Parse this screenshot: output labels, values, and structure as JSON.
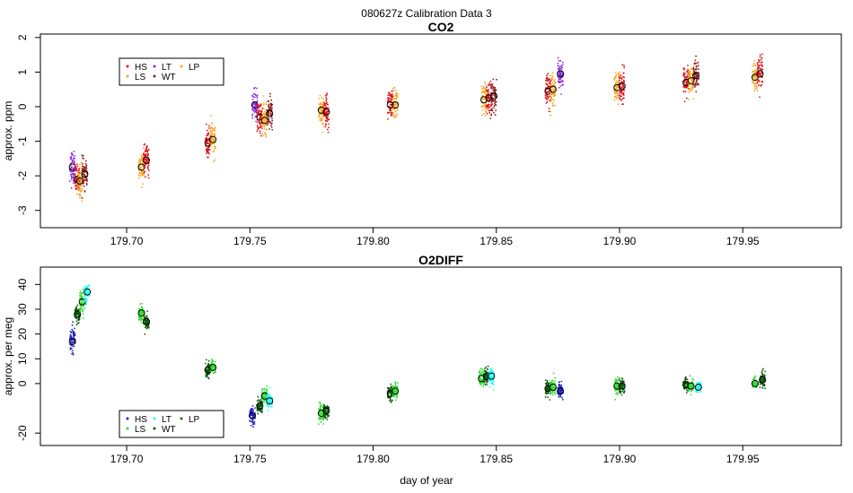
{
  "figure": {
    "title": "080627z   Calibration Data 3",
    "xlabel": "day of year"
  },
  "colors": {
    "HS": "#e0101a",
    "LS": "#f5a623",
    "LT": "#8a2be2",
    "WT": "#8b1a1a",
    "LP": "#f0b000"
  },
  "colors_o2": {
    "HS": "#2020c8",
    "LS": "#33dd33",
    "LT": "#22ffff",
    "WT": "#0a5a0a",
    "LP": "#1a6e1a"
  },
  "chart_data": [
    {
      "type": "scatter",
      "title": "CO2",
      "ylabel": "approx. ppm",
      "xlim": [
        179.665,
        179.99
      ],
      "ylim": [
        -3.5,
        2.1
      ],
      "xticks": [
        "179.70",
        "179.75",
        "179.80",
        "179.85",
        "179.90",
        "179.95"
      ],
      "xtick_values": [
        179.7,
        179.75,
        179.8,
        179.85,
        179.9,
        179.95
      ],
      "yticks": [
        "-3",
        "-2",
        "-1",
        "0",
        "1",
        "2"
      ],
      "ytick_values": [
        -3,
        -2,
        -1,
        0,
        1,
        2
      ],
      "legend": {
        "placement": "top-left",
        "entries": [
          {
            "label": "HS",
            "series": "HS"
          },
          {
            "label": "LS",
            "series": "LS"
          },
          {
            "label": "LT",
            "series": "LT"
          },
          {
            "label": "WT",
            "series": "WT"
          },
          {
            "label": "LP",
            "series": "LP"
          }
        ]
      },
      "clusters": [
        {
          "series": "LT",
          "x": 179.678,
          "mean": -1.75,
          "spread": 0.5
        },
        {
          "series": "HS",
          "x": 179.68,
          "mean": -2.1,
          "spread": 0.4
        },
        {
          "series": "LS",
          "x": 179.681,
          "mean": -2.15,
          "spread": 0.5
        },
        {
          "series": "WT",
          "x": 179.683,
          "mean": -1.95,
          "spread": 0.4
        },
        {
          "series": "LS",
          "x": 179.706,
          "mean": -1.75,
          "spread": 0.4
        },
        {
          "series": "HS",
          "x": 179.708,
          "mean": -1.55,
          "spread": 0.4
        },
        {
          "series": "HS",
          "x": 179.733,
          "mean": -1.05,
          "spread": 0.45
        },
        {
          "series": "LS",
          "x": 179.735,
          "mean": -0.95,
          "spread": 0.45
        },
        {
          "series": "LT",
          "x": 179.752,
          "mean": 0.05,
          "spread": 0.4
        },
        {
          "series": "HS",
          "x": 179.754,
          "mean": -0.3,
          "spread": 0.45
        },
        {
          "series": "LS",
          "x": 179.756,
          "mean": -0.4,
          "spread": 0.45
        },
        {
          "series": "WT",
          "x": 179.758,
          "mean": -0.2,
          "spread": 0.45
        },
        {
          "series": "LS",
          "x": 179.779,
          "mean": -0.1,
          "spread": 0.45
        },
        {
          "series": "HS",
          "x": 179.781,
          "mean": -0.15,
          "spread": 0.45
        },
        {
          "series": "HS",
          "x": 179.807,
          "mean": 0.05,
          "spread": 0.45
        },
        {
          "series": "LS",
          "x": 179.809,
          "mean": 0.05,
          "spread": 0.45
        },
        {
          "series": "LS",
          "x": 179.845,
          "mean": 0.2,
          "spread": 0.45
        },
        {
          "series": "HS",
          "x": 179.847,
          "mean": 0.25,
          "spread": 0.45
        },
        {
          "series": "WT",
          "x": 179.849,
          "mean": 0.3,
          "spread": 0.45
        },
        {
          "series": "HS",
          "x": 179.871,
          "mean": 0.45,
          "spread": 0.45
        },
        {
          "series": "LS",
          "x": 179.873,
          "mean": 0.5,
          "spread": 0.45
        },
        {
          "series": "LT",
          "x": 179.876,
          "mean": 0.95,
          "spread": 0.4
        },
        {
          "series": "LS",
          "x": 179.899,
          "mean": 0.55,
          "spread": 0.45
        },
        {
          "series": "HS",
          "x": 179.901,
          "mean": 0.6,
          "spread": 0.45
        },
        {
          "series": "HS",
          "x": 179.927,
          "mean": 0.7,
          "spread": 0.45
        },
        {
          "series": "LS",
          "x": 179.929,
          "mean": 0.75,
          "spread": 0.45
        },
        {
          "series": "WT",
          "x": 179.931,
          "mean": 0.9,
          "spread": 0.45
        },
        {
          "series": "LS",
          "x": 179.955,
          "mean": 0.85,
          "spread": 0.45
        },
        {
          "series": "HS",
          "x": 179.957,
          "mean": 0.95,
          "spread": 0.45
        }
      ]
    },
    {
      "type": "scatter",
      "title": "O2DIFF",
      "ylabel": "approx. per meg",
      "xlim": [
        179.665,
        179.99
      ],
      "ylim": [
        -25,
        47
      ],
      "xticks": [
        "179.70",
        "179.75",
        "179.80",
        "179.85",
        "179.90",
        "179.95"
      ],
      "xtick_values": [
        179.7,
        179.75,
        179.8,
        179.85,
        179.9,
        179.95
      ],
      "yticks": [
        "-20",
        "0",
        "10",
        "20",
        "30",
        "40"
      ],
      "ytick_values": [
        -20,
        0,
        10,
        20,
        30,
        40
      ],
      "legend": {
        "placement": "bottom-left",
        "entries": [
          {
            "label": "HS",
            "series": "HS"
          },
          {
            "label": "LS",
            "series": "LS"
          },
          {
            "label": "LT",
            "series": "LT"
          },
          {
            "label": "WT",
            "series": "WT"
          },
          {
            "label": "LP",
            "series": "LP"
          }
        ]
      },
      "clusters": [
        {
          "series": "HS",
          "x": 179.678,
          "mean": 17,
          "spread": 5
        },
        {
          "series": "WT",
          "x": 179.68,
          "mean": 28,
          "spread": 4
        },
        {
          "series": "LS",
          "x": 179.682,
          "mean": 33,
          "spread": 4
        },
        {
          "series": "LT",
          "x": 179.684,
          "mean": 37,
          "spread": 4
        },
        {
          "series": "LS",
          "x": 179.706,
          "mean": 28.5,
          "spread": 3
        },
        {
          "series": "WT",
          "x": 179.708,
          "mean": 25,
          "spread": 3
        },
        {
          "series": "WT",
          "x": 179.733,
          "mean": 5.5,
          "spread": 3
        },
        {
          "series": "LS",
          "x": 179.735,
          "mean": 6.5,
          "spread": 3
        },
        {
          "series": "HS",
          "x": 179.751,
          "mean": -13,
          "spread": 3
        },
        {
          "series": "WT",
          "x": 179.754,
          "mean": -9,
          "spread": 3
        },
        {
          "series": "LS",
          "x": 179.756,
          "mean": -5,
          "spread": 3
        },
        {
          "series": "LT",
          "x": 179.758,
          "mean": -7,
          "spread": 3
        },
        {
          "series": "LS",
          "x": 179.779,
          "mean": -12,
          "spread": 4
        },
        {
          "series": "WT",
          "x": 179.781,
          "mean": -11,
          "spread": 3
        },
        {
          "series": "WT",
          "x": 179.807,
          "mean": -4,
          "spread": 3
        },
        {
          "series": "LS",
          "x": 179.809,
          "mean": -3,
          "spread": 3
        },
        {
          "series": "LS",
          "x": 179.844,
          "mean": 2,
          "spread": 3.5
        },
        {
          "series": "WT",
          "x": 179.846,
          "mean": 3,
          "spread": 3.5
        },
        {
          "series": "LT",
          "x": 179.848,
          "mean": 3,
          "spread": 3.5
        },
        {
          "series": "WT",
          "x": 179.871,
          "mean": -2,
          "spread": 3
        },
        {
          "series": "LS",
          "x": 179.873,
          "mean": -1.5,
          "spread": 3
        },
        {
          "series": "HS",
          "x": 179.876,
          "mean": -3,
          "spread": 3
        },
        {
          "series": "LS",
          "x": 179.899,
          "mean": -1,
          "spread": 3.5
        },
        {
          "series": "WT",
          "x": 179.901,
          "mean": -1,
          "spread": 3
        },
        {
          "series": "WT",
          "x": 179.927,
          "mean": -0.5,
          "spread": 2.5
        },
        {
          "series": "LS",
          "x": 179.929,
          "mean": -1,
          "spread": 2.5
        },
        {
          "series": "LT",
          "x": 179.932,
          "mean": -1.5,
          "spread": 2.5
        },
        {
          "series": "LS",
          "x": 179.955,
          "mean": 0,
          "spread": 2.5
        },
        {
          "series": "WT",
          "x": 179.958,
          "mean": 1.5,
          "spread": 3
        }
      ]
    }
  ]
}
